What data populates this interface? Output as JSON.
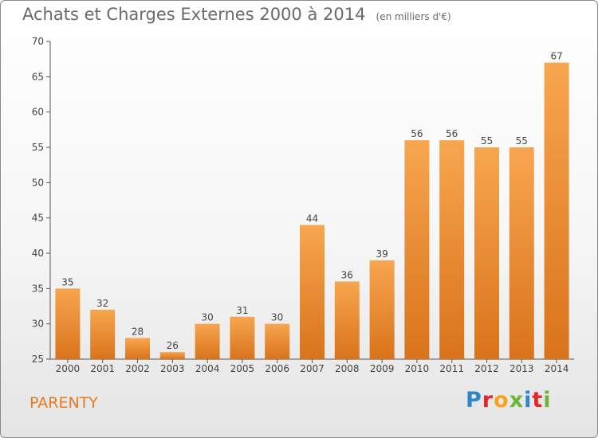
{
  "chart_data": {
    "type": "bar",
    "title": "Achats et Charges Externes 2000 à 2014",
    "subtitle": "(en milliers d'€)",
    "xlabel": "",
    "ylabel": "",
    "categories": [
      "2000",
      "2001",
      "2002",
      "2003",
      "2004",
      "2005",
      "2006",
      "2007",
      "2008",
      "2009",
      "2010",
      "2011",
      "2012",
      "2013",
      "2014"
    ],
    "values": [
      35,
      32,
      28,
      26,
      30,
      31,
      30,
      44,
      36,
      39,
      56,
      56,
      55,
      55,
      67
    ],
    "ylim": [
      25,
      70
    ],
    "yticks": [
      25,
      30,
      35,
      40,
      45,
      50,
      55,
      60,
      65,
      70
    ],
    "grid": false,
    "legend": "none",
    "bar_color_light": "#f7a64f",
    "bar_color_dark": "#d9731b"
  },
  "commune": "PARENTY",
  "logo": {
    "letters": [
      "P",
      "r",
      "o",
      "x",
      "i",
      "t",
      "i"
    ],
    "colors": [
      "#2e86c8",
      "#e3262b",
      "#f7a21b",
      "#6db43a",
      "#2e86c8",
      "#e3262b",
      "#6db43a"
    ]
  },
  "colors": {
    "title": "#6a6a6a",
    "axis": "#555555",
    "commune": "#e67a20"
  }
}
